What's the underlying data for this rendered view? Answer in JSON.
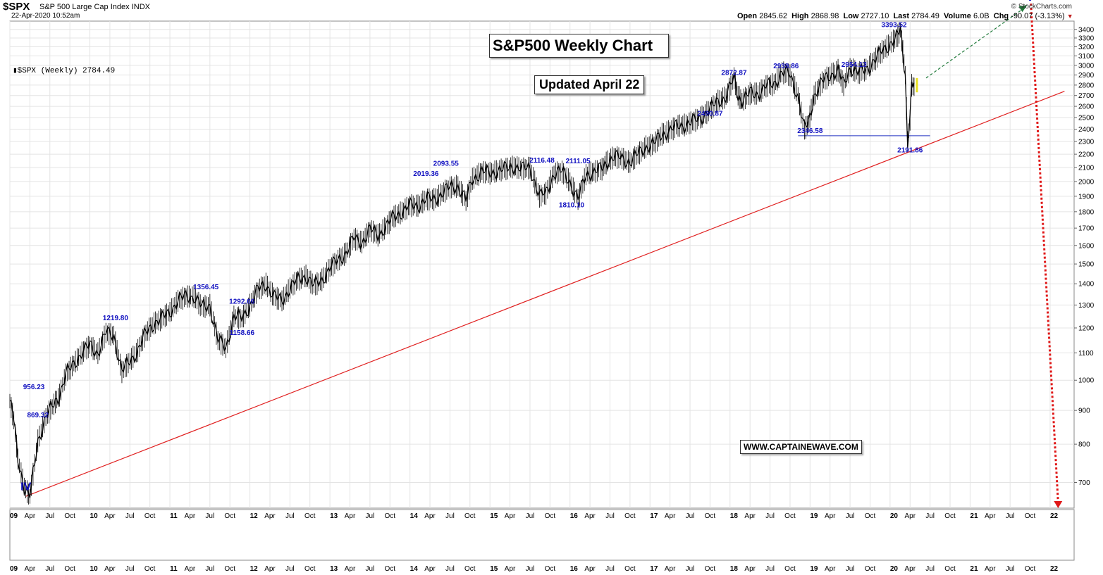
{
  "header": {
    "ticker": "$SPX",
    "name": "S&P 500 Large Cap Index",
    "exchange": "INDX",
    "date": "22-Apr-2020 10:52am",
    "credit": "© StockCharts.com",
    "open_label": "Open",
    "open": "2845.62",
    "high_label": "High",
    "high": "2868.98",
    "low_label": "Low",
    "low": "2727.10",
    "last_label": "Last",
    "last": "2784.49",
    "volume_label": "Volume",
    "volume": "6.0B",
    "chg_label": "Chg",
    "chg": "-90.07 (-3.13%)",
    "legend": "$SPX (Weekly) 2784.49"
  },
  "title": "S&P500 Weekly Chart",
  "update": "Updated April 22",
  "website": "WWW.CAPTAINEWAVE.COM",
  "colors": {
    "price": "#000000",
    "trendline": "#e02020",
    "annotation": "#1010c0",
    "projection_up": "#1f7a3a",
    "projection_down": "#e01818",
    "support": "#2030c0",
    "highlight": "#e8e020"
  },
  "chart_data": {
    "type": "line",
    "y_scale": "log",
    "ylim": [
      640,
      3500
    ],
    "y_ticks": [
      700,
      800,
      900,
      1000,
      1100,
      1200,
      1300,
      1400,
      1500,
      1600,
      1700,
      1800,
      1900,
      2000,
      2100,
      2200,
      2300,
      2400,
      2500,
      2600,
      2700,
      2800,
      2900,
      3000,
      3100,
      3200,
      3300,
      3400
    ],
    "xlim": [
      2009.0,
      2022.3
    ],
    "x_tick_labels": [
      "09",
      "Apr",
      "Jul",
      "Oct",
      "10",
      "Apr",
      "Jul",
      "Oct",
      "11",
      "Apr",
      "Jul",
      "Oct",
      "12",
      "Apr",
      "Jul",
      "Oct",
      "13",
      "Apr",
      "Jul",
      "Oct",
      "14",
      "Apr",
      "Jul",
      "Oct",
      "15",
      "Apr",
      "Jul",
      "Oct",
      "16",
      "Apr",
      "Jul",
      "Oct",
      "17",
      "Apr",
      "Jul",
      "Oct",
      "18",
      "Apr",
      "Jul",
      "Oct",
      "19",
      "Apr",
      "Jul",
      "Oct",
      "20",
      "Apr",
      "Jul",
      "Oct",
      "21",
      "Apr",
      "Jul",
      "Oct",
      "22"
    ],
    "series": [
      {
        "x": [
          2009.0,
          2009.05,
          2009.1,
          2009.18,
          2009.25,
          2009.35,
          2009.45,
          2009.55,
          2009.62,
          2009.7,
          2009.8,
          2009.9,
          2010.0,
          2010.1,
          2010.2,
          2010.3,
          2010.4,
          2010.5,
          2010.6,
          2010.7,
          2010.8,
          2010.9,
          2011.0,
          2011.1,
          2011.2,
          2011.3,
          2011.4,
          2011.5,
          2011.6,
          2011.7,
          2011.8,
          2011.9,
          2012.0,
          2012.1,
          2012.2,
          2012.3,
          2012.4,
          2012.5,
          2012.6,
          2012.7,
          2012.8,
          2012.9,
          2013.0,
          2013.1,
          2013.2,
          2013.3,
          2013.4,
          2013.5,
          2013.6,
          2013.7,
          2013.8,
          2013.9,
          2014.0,
          2014.1,
          2014.2,
          2014.3,
          2014.4,
          2014.5,
          2014.6,
          2014.7,
          2014.78,
          2014.9,
          2015.0,
          2015.1,
          2015.2,
          2015.3,
          2015.4,
          2015.5,
          2015.62,
          2015.7,
          2015.8,
          2015.9,
          2016.0,
          2016.1,
          2016.2,
          2016.3,
          2016.4,
          2016.47,
          2016.55,
          2016.65,
          2016.75,
          2016.85,
          2016.95,
          2017.05,
          2017.15,
          2017.25,
          2017.35,
          2017.45,
          2017.55,
          2017.65,
          2017.75,
          2017.85,
          2017.95,
          2018.05,
          2018.1,
          2018.15,
          2018.25,
          2018.35,
          2018.45,
          2018.55,
          2018.65,
          2018.75,
          2018.85,
          2018.93,
          2018.98,
          2019.05,
          2019.15,
          2019.25,
          2019.35,
          2019.42,
          2019.5,
          2019.6,
          2019.7,
          2019.8,
          2019.9,
          2020.0,
          2020.08,
          2020.13,
          2020.16,
          2020.19,
          2020.22,
          2020.25,
          2020.27,
          2020.3
        ],
        "y": [
          930,
          870,
          760,
          690,
          667,
          810,
          880,
          920,
          950,
          1020,
          1060,
          1100,
          1130,
          1100,
          1180,
          1170,
          1030,
          1070,
          1110,
          1180,
          1220,
          1240,
          1270,
          1320,
          1340,
          1340,
          1290,
          1300,
          1150,
          1120,
          1250,
          1240,
          1300,
          1370,
          1400,
          1340,
          1320,
          1380,
          1420,
          1440,
          1390,
          1420,
          1480,
          1520,
          1560,
          1640,
          1620,
          1690,
          1660,
          1710,
          1770,
          1800,
          1840,
          1840,
          1880,
          1880,
          1920,
          1960,
          1970,
          1870,
          2020,
          2070,
          2060,
          2080,
          2090,
          2110,
          2090,
          2100,
          1900,
          1920,
          2060,
          2070,
          2000,
          1880,
          2050,
          2070,
          2090,
          2150,
          2180,
          2170,
          2140,
          2200,
          2260,
          2280,
          2360,
          2390,
          2430,
          2440,
          2470,
          2510,
          2570,
          2650,
          2690,
          2870,
          2700,
          2650,
          2720,
          2720,
          2790,
          2810,
          2930,
          2900,
          2700,
          2400,
          2450,
          2700,
          2830,
          2900,
          2950,
          2800,
          2980,
          2920,
          2960,
          3050,
          3150,
          3240,
          3300,
          3390,
          3150,
          2900,
          2300,
          2480,
          2800,
          2784
        ]
      }
    ],
    "trendline": [
      [
        2009.2,
        667
      ],
      [
        2022.18,
        2740
      ]
    ],
    "support_line": [
      [
        2018.85,
        2346
      ],
      [
        2020.5,
        2346
      ]
    ],
    "projection_up": [
      [
        2020.45,
        2870
      ],
      [
        2021.75,
        3720
      ]
    ],
    "projection_down": [
      [
        2021.76,
        3720
      ],
      [
        2022.1,
        640
      ]
    ],
    "annotations": [
      {
        "x": 2009.2,
        "y": 675,
        "text": "IV",
        "size": 16
      },
      {
        "x": 2009.3,
        "y": 960,
        "text": "956.23",
        "size": 10
      },
      {
        "x": 2009.35,
        "y": 870,
        "text": "869.32",
        "size": 10
      },
      {
        "x": 2010.32,
        "y": 1220,
        "text": "1219.80",
        "size": 10
      },
      {
        "x": 2011.45,
        "y": 1360,
        "text": "1356.45",
        "size": 10
      },
      {
        "x": 2011.9,
        "y": 1293,
        "text": "1292.66",
        "size": 10
      },
      {
        "x": 2011.9,
        "y": 1159,
        "text": "1158.66",
        "size": 10
      },
      {
        "x": 2014.2,
        "y": 2020,
        "text": "2019.36",
        "size": 10
      },
      {
        "x": 2014.45,
        "y": 2093,
        "text": "2093.55",
        "size": 10
      },
      {
        "x": 2015.65,
        "y": 2116,
        "text": "2116.48",
        "size": 10
      },
      {
        "x": 2016.1,
        "y": 2111,
        "text": "2111.05",
        "size": 10
      },
      {
        "x": 2016.02,
        "y": 1810,
        "text": "1810.10",
        "size": 10
      },
      {
        "x": 2017.75,
        "y": 2491,
        "text": "2490.87",
        "size": 10
      },
      {
        "x": 2018.05,
        "y": 2873,
        "text": "2872.87",
        "size": 10
      },
      {
        "x": 2018.7,
        "y": 2940,
        "text": "2939.86",
        "size": 10
      },
      {
        "x": 2019.55,
        "y": 2954,
        "text": "2954.13",
        "size": 10
      },
      {
        "x": 2020.05,
        "y": 3394,
        "text": "3393.52",
        "size": 10
      },
      {
        "x": 2019.0,
        "y": 2346,
        "text": "2346.58",
        "size": 10
      },
      {
        "x": 2020.25,
        "y": 2192,
        "text": "2191.86",
        "size": 10
      },
      {
        "x": 2021.75,
        "y": 3720,
        "text": "V",
        "size": 18
      }
    ]
  }
}
